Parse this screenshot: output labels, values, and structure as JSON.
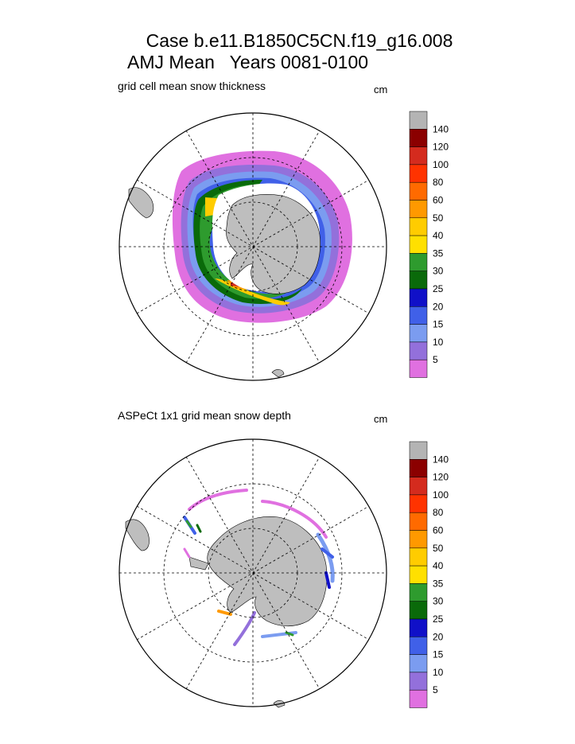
{
  "header": {
    "line1": "Case b.e11.B1850C5CN.f19_g16.008",
    "line2": "AMJ Mean   Years 0081-0100"
  },
  "panels": [
    {
      "subtitle": "grid cell mean snow thickness",
      "unit": "cm"
    },
    {
      "subtitle": "ASPeCt 1x1 grid mean snow depth",
      "unit": "cm"
    }
  ],
  "colorbar": {
    "labels": [
      "140",
      "120",
      "100",
      "80",
      "60",
      "50",
      "40",
      "35",
      "30",
      "25",
      "20",
      "15",
      "10",
      "5"
    ],
    "colors": [
      "#b4b4b4",
      "#8b0000",
      "#d42b1e",
      "#ff3300",
      "#ff6a00",
      "#ff9900",
      "#ffcc00",
      "#ffe000",
      "#2e9b2e",
      "#0a6a0a",
      "#1010c8",
      "#4060e8",
      "#7b9cf0",
      "#9370db",
      "#e070e0"
    ]
  },
  "colors": {
    "land": "#bebebe",
    "grid": "#000000"
  }
}
